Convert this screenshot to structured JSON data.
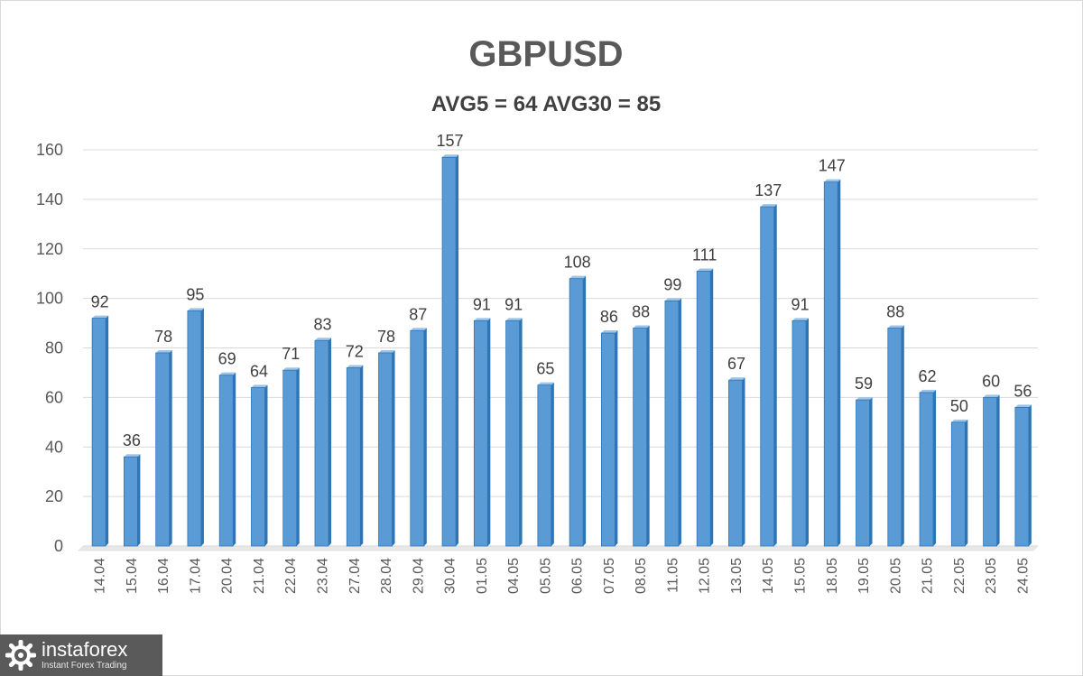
{
  "chart_data": {
    "type": "bar",
    "title": "GBPUSD",
    "subtitle": "AVG5 = 64 AVG30 = 85",
    "categories": [
      "14.04",
      "15.04",
      "16.04",
      "17.04",
      "20.04",
      "21.04",
      "22.04",
      "23.04",
      "27.04",
      "28.04",
      "29.04",
      "30.04",
      "01.05",
      "04.05",
      "05.05",
      "06.05",
      "07.05",
      "08.05",
      "11.05",
      "12.05",
      "13.05",
      "14.05",
      "15.05",
      "18.05",
      "19.05",
      "20.05",
      "21.05",
      "22.05",
      "23.05",
      "24.05"
    ],
    "values": [
      92,
      36,
      78,
      95,
      69,
      64,
      71,
      83,
      72,
      78,
      87,
      157,
      91,
      91,
      65,
      108,
      86,
      88,
      99,
      111,
      67,
      137,
      91,
      147,
      59,
      88,
      62,
      50,
      60,
      56
    ],
    "ylim": [
      0,
      160
    ],
    "yticks": [
      0,
      20,
      40,
      60,
      80,
      100,
      120,
      140,
      160
    ],
    "grid": true,
    "data_labels": true,
    "bar_color": "#5b9bd5",
    "bar_edge_color": "#2e75b6"
  },
  "watermark": {
    "name": "instaforex",
    "tagline": "Instant Forex Trading"
  }
}
